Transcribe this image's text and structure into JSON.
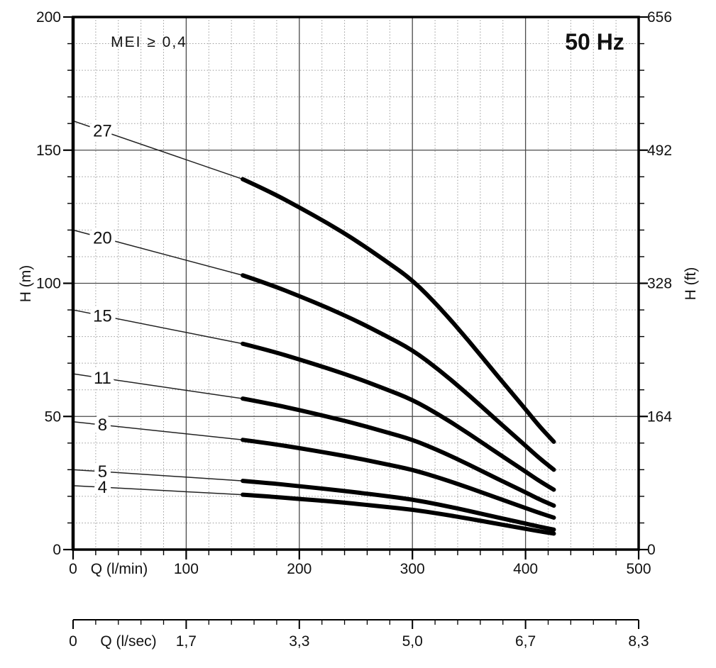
{
  "chart_data": {
    "type": "line",
    "frequency_label": "50 Hz",
    "mei_label": "MEI ≥ 0,4",
    "curve_color": "#000000",
    "grid": {
      "major_color": "#4a4a4a",
      "minor_color": "#9a9a9a",
      "grid_on": true
    },
    "x_axis_lmin": {
      "title": "Q (l/min)",
      "range": [
        0,
        500
      ],
      "tick_values": [
        0,
        100,
        200,
        300,
        400,
        500
      ],
      "tick_labels": [
        "0",
        "100",
        "200",
        "300",
        "400",
        "500"
      ],
      "minor_step": 20
    },
    "x_axis_lsec": {
      "title": "Q (l/sec)",
      "tick_values_lmin": [
        0,
        100,
        200,
        300,
        400,
        500
      ],
      "tick_labels": [
        "0",
        "1,7",
        "3,3",
        "5,0",
        "6,7",
        "8,3"
      ]
    },
    "y_axis_m": {
      "title": "H (m)",
      "range": [
        0,
        200
      ],
      "tick_values": [
        0,
        50,
        100,
        150,
        200
      ],
      "tick_labels": [
        "0",
        "50",
        "100",
        "150",
        "200"
      ],
      "minor_step": 10
    },
    "y_axis_ft": {
      "title": "H (ft)",
      "tick_values_m": [
        0,
        50,
        100,
        150,
        200
      ],
      "tick_labels": [
        "0",
        "164",
        "328",
        "492",
        "656"
      ]
    },
    "x": [
      0,
      150,
      175,
      200,
      225,
      250,
      275,
      300,
      325,
      350,
      375,
      400,
      412,
      425
    ],
    "thick_from_index": 1,
    "label_at_q": 26,
    "series": [
      {
        "name": "27",
        "values": [
          161,
          139.1,
          134.2,
          128.5,
          122.6,
          116.1,
          108.8,
          101.3,
          90.5,
          78.3,
          65.3,
          52.7,
          46.4,
          40.5
        ]
      },
      {
        "name": "20",
        "values": [
          120,
          103,
          99.4,
          95.2,
          90.8,
          86,
          80.6,
          75,
          67,
          58,
          48.4,
          39,
          34.4,
          30
        ]
      },
      {
        "name": "15",
        "values": [
          90,
          77.3,
          74.6,
          71.4,
          68.1,
          64.5,
          60.5,
          56.3,
          50.3,
          43.5,
          36.3,
          29.3,
          25.8,
          22.5
        ]
      },
      {
        "name": "11",
        "values": [
          66,
          56.7,
          54.7,
          52.4,
          49.9,
          47.3,
          44.3,
          41.3,
          36.9,
          31.9,
          26.6,
          21.5,
          18.9,
          16.5
        ]
      },
      {
        "name": "8",
        "values": [
          48,
          41.2,
          39.8,
          38.1,
          36.3,
          34.4,
          32.2,
          30,
          26.8,
          23.2,
          19.4,
          15.6,
          13.8,
          12
        ]
      },
      {
        "name": "5",
        "values": [
          30,
          25.8,
          24.9,
          23.8,
          22.7,
          21.5,
          20.2,
          18.8,
          16.8,
          14.5,
          12.1,
          9.8,
          8.6,
          7.5
        ]
      },
      {
        "name": "4",
        "values": [
          24,
          20.6,
          19.9,
          19,
          18.2,
          17.2,
          16.1,
          15,
          13.4,
          11.6,
          9.7,
          7.8,
          6.9,
          6
        ]
      }
    ]
  }
}
